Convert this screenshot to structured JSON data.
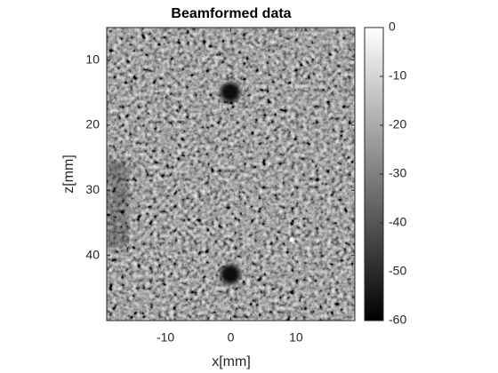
{
  "chart_data": {
    "type": "image",
    "title": "Beamformed data",
    "x_label": "x[mm]",
    "y_label": "z[mm]",
    "xlim": [
      -19,
      19
    ],
    "xticks": [
      -10,
      0,
      10
    ],
    "ylim": [
      50,
      5
    ],
    "yticks": [
      10,
      20,
      30,
      40
    ],
    "colormap": "gray",
    "colorbar": {
      "lim": [
        -60,
        0
      ],
      "ticks": [
        0,
        -10,
        -20,
        -30,
        -40,
        -50,
        -60
      ]
    }
  }
}
